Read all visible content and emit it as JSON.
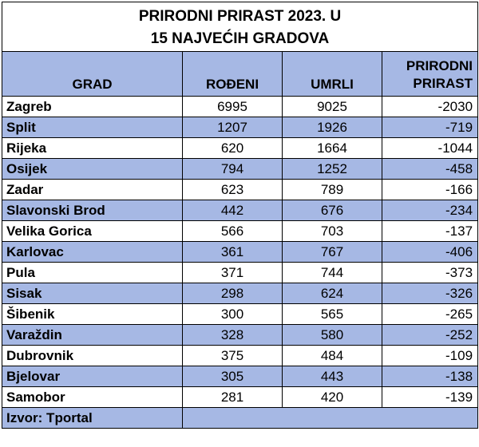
{
  "title_line1": "PRIRODNI PRIRAST 2023. U",
  "title_line2": "15 NAJVEĆIH GRADOVA",
  "headers": {
    "city": "GRAD",
    "born": "ROĐENI",
    "died": "UMRLI",
    "net_line1": "PRIRODNI",
    "net_line2": "PRIRAST"
  },
  "rows": [
    {
      "city": "Zagreb",
      "born": "6995",
      "died": "9025",
      "net": "-2030"
    },
    {
      "city": "Split",
      "born": "1207",
      "died": "1926",
      "net": "-719"
    },
    {
      "city": "Rijeka",
      "born": "620",
      "died": "1664",
      "net": "-1044"
    },
    {
      "city": "Osijek",
      "born": "794",
      "died": "1252",
      "net": "-458"
    },
    {
      "city": "Zadar",
      "born": "623",
      "died": "789",
      "net": "-166"
    },
    {
      "city": "Slavonski Brod",
      "born": "442",
      "died": "676",
      "net": "-234"
    },
    {
      "city": "Velika Gorica",
      "born": "566",
      "died": "703",
      "net": "-137"
    },
    {
      "city": "Karlovac",
      "born": "361",
      "died": "767",
      "net": "-406"
    },
    {
      "city": "Pula",
      "born": "371",
      "died": "744",
      "net": "-373"
    },
    {
      "city": "Sisak",
      "born": "298",
      "died": "624",
      "net": "-326"
    },
    {
      "city": "Šibenik",
      "born": "300",
      "died": "565",
      "net": "-265"
    },
    {
      "city": "Varaždin",
      "born": "328",
      "died": "580",
      "net": "-252"
    },
    {
      "city": "Dubrovnik",
      "born": "375",
      "died": "484",
      "net": "-109"
    },
    {
      "city": "Bjelovar",
      "born": "305",
      "died": "443",
      "net": "-138"
    },
    {
      "city": "Samobor",
      "born": "281",
      "died": "420",
      "net": "-139"
    }
  ],
  "source": "Izvor: Tportal",
  "colors": {
    "header_band": "#a6b8e4",
    "plain_row": "#ffffff"
  }
}
